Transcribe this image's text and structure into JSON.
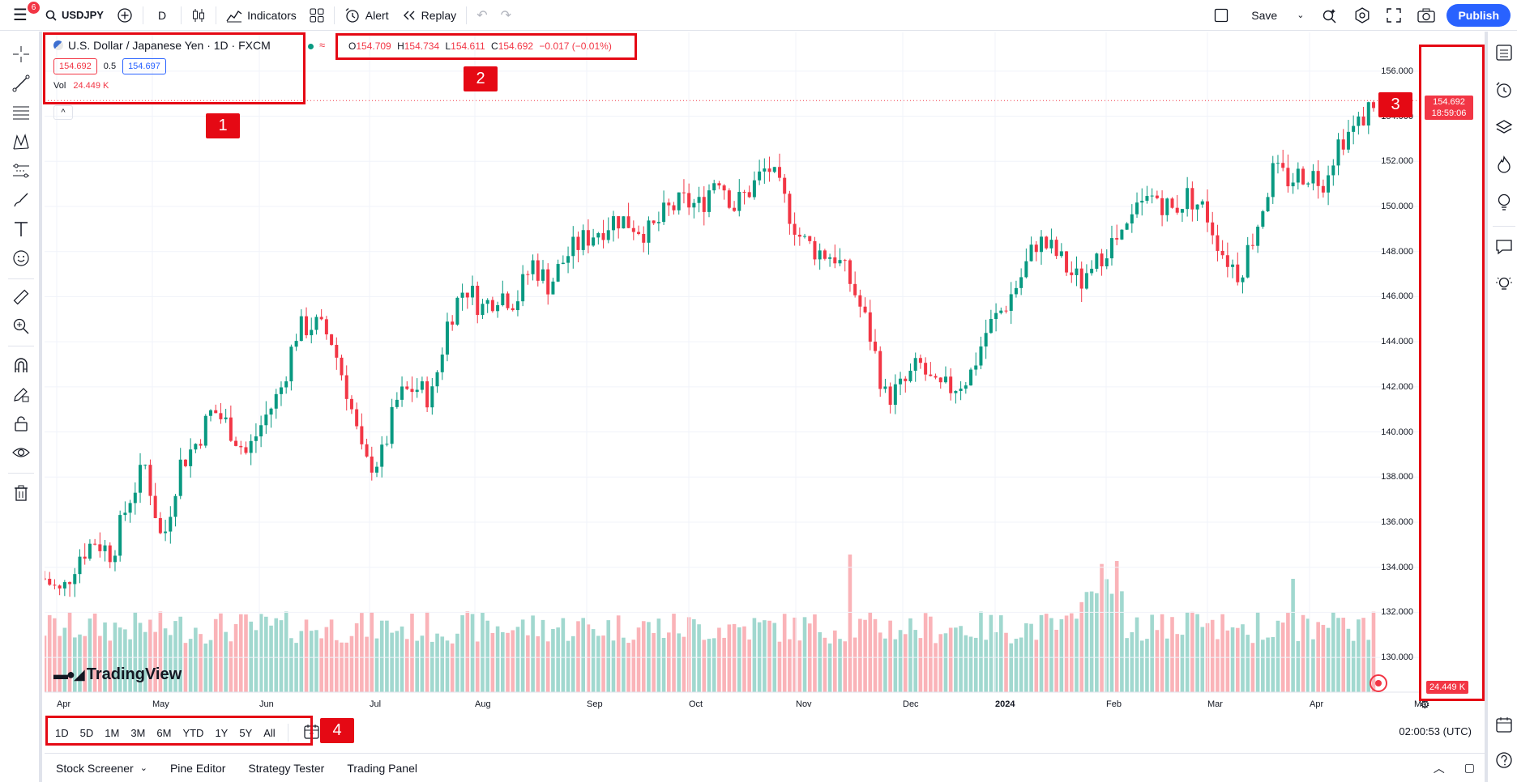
{
  "topbar": {
    "notification_count": "6",
    "symbol": "USDJPY",
    "interval": "D",
    "indicators_label": "Indicators",
    "alert_label": "Alert",
    "replay_label": "Replay",
    "save_label": "Save",
    "publish_label": "Publish"
  },
  "legend": {
    "title": "U.S. Dollar / Japanese Yen · 1D · FXCM",
    "bid": "154.692",
    "spread": "0.5",
    "ask": "154.697",
    "vol_label": "Vol",
    "vol_value": "24.449 K"
  },
  "ohlc": {
    "o_label": "O",
    "o": "154.709",
    "h_label": "H",
    "h": "154.734",
    "l_label": "L",
    "l": "154.611",
    "c_label": "C",
    "c": "154.692",
    "change": "−0.017 (−0.01%)"
  },
  "price_axis": {
    "labels": [
      "156.000",
      "154.000",
      "152.000",
      "150.000",
      "148.000",
      "146.000",
      "144.000",
      "142.000",
      "140.000",
      "138.000",
      "136.000",
      "134.000",
      "132.000",
      "130.000"
    ],
    "current_price": "154.692",
    "countdown": "18:59:06",
    "volume_badge": "24.449 K"
  },
  "time_axis": {
    "labels": [
      "Apr",
      "May",
      "Jun",
      "Jul",
      "Aug",
      "Sep",
      "Oct",
      "Nov",
      "Dec",
      "2024",
      "Feb",
      "Mar",
      "Apr",
      "Ma"
    ]
  },
  "range_buttons": [
    "1D",
    "5D",
    "1M",
    "3M",
    "6M",
    "YTD",
    "1Y",
    "5Y",
    "All"
  ],
  "clock": "02:00:53 (UTC)",
  "bottom_panel": {
    "stock_screener": "Stock Screener",
    "pine_editor": "Pine Editor",
    "strategy_tester": "Strategy Tester",
    "trading_panel": "Trading Panel"
  },
  "watermark": "TradingView",
  "annotations": [
    "1",
    "2",
    "3",
    "4"
  ],
  "chart_data": {
    "type": "candlestick",
    "symbol": "USDJPY",
    "ylim": [
      129,
      157
    ],
    "x_ticks": [
      "Apr",
      "May",
      "Jun",
      "Jul",
      "Aug",
      "Sep",
      "Oct",
      "Nov",
      "Dec",
      "2024",
      "Feb",
      "Mar",
      "Apr"
    ],
    "close_path": [
      133.5,
      132.8,
      134.5,
      135.2,
      134.6,
      137.0,
      138.5,
      135.0,
      138.5,
      139.5,
      141.0,
      140.2,
      139.0,
      140.5,
      141.8,
      144.5,
      144.8,
      144.2,
      141.8,
      138.5,
      138.8,
      141.5,
      142.0,
      141.5,
      145.0,
      146.5,
      145.5,
      146.2,
      145.8,
      147.5,
      146.5,
      147.8,
      148.5,
      149.0,
      149.5,
      149.2,
      148.8,
      149.8,
      150.2,
      150.0,
      151.5,
      150.0,
      150.8,
      151.8,
      150.2,
      148.5,
      148.0,
      147.8,
      146.5,
      144.5,
      141.5,
      142.0,
      143.0,
      141.8,
      142.0,
      142.5,
      144.5,
      145.5,
      146.8,
      148.5,
      148.0,
      147.0,
      146.5,
      148.2,
      148.5,
      149.8,
      150.5,
      149.8,
      150.5,
      149.8,
      148.0,
      147.0,
      149.0,
      151.5,
      151.2,
      151.5,
      151.2,
      153.0,
      153.5,
      154.7
    ],
    "volume_level": "roughly uniform, peak in mid-December"
  }
}
